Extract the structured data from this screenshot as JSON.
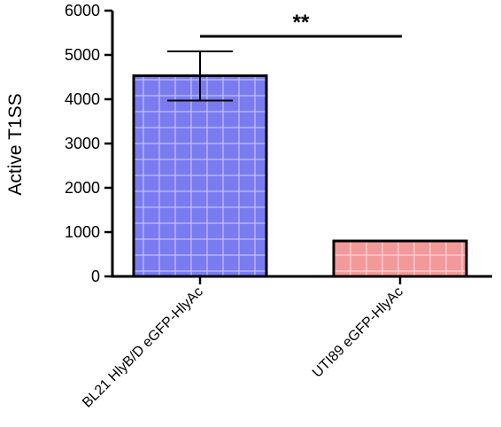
{
  "chart_data": {
    "type": "bar",
    "title": "",
    "xlabel": "",
    "ylabel": "Active T1SS",
    "ylim": [
      0,
      6000
    ],
    "yticks": [
      0,
      1000,
      2000,
      3000,
      4000,
      5000,
      6000
    ],
    "ytick_labels": [
      "0",
      "1000",
      "2000",
      "3000",
      "4000",
      "5000",
      "6000"
    ],
    "categories": [
      "BL21 HlyB/D eGFP-HlyAc",
      "UTI89 eGFP-HlyAc"
    ],
    "values": [
      4530,
      800
    ],
    "error_low": [
      3970,
      790
    ],
    "error_high": [
      5080,
      810
    ],
    "colors": [
      "#7b7bf0",
      "#f29a9a"
    ],
    "significance": {
      "label": "**",
      "between": [
        0,
        1
      ]
    },
    "grid": false,
    "legend": "none"
  }
}
